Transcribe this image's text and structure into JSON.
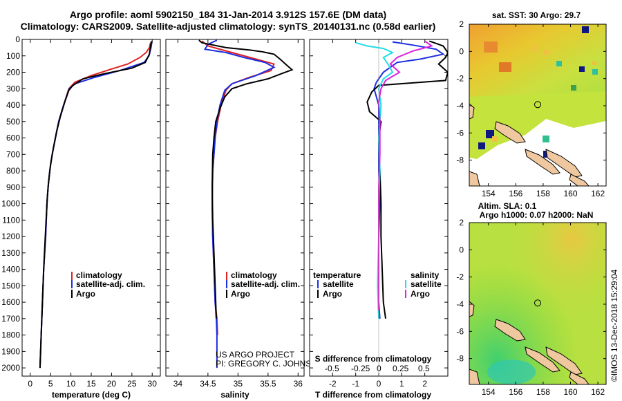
{
  "header": {
    "title_line1": "Argo profile: aoml 5902150_184 31-Jan-2014 3.912S 157.6E (DM data)",
    "title_line2": "Climatology: CARS2009. Satellite-adjusted climatology: synTS_20140131.nc (0.58d earlier)"
  },
  "colors": {
    "climatology": "#e02020",
    "satellite": "#1c2ee0",
    "argo": "#000000",
    "salinity_satellite": "#22dde8",
    "salinity_argo": "#dd22dd"
  },
  "depth_axis": {
    "ylim": [
      0,
      2050
    ],
    "ticks": [
      0,
      100,
      200,
      300,
      400,
      500,
      600,
      700,
      800,
      900,
      1000,
      1100,
      1200,
      1300,
      1400,
      1500,
      1600,
      1700,
      1800,
      1900,
      2000
    ]
  },
  "chart_data": [
    {
      "type": "line",
      "panel": "temperature",
      "xlabel": "temperature (deg C)",
      "xlim": [
        -2,
        32
      ],
      "xticks": [
        0,
        5,
        10,
        15,
        20,
        25,
        30
      ],
      "legend": [
        "climatology",
        "satellite-adj. clim.",
        "Argo"
      ],
      "series": [
        {
          "name": "climatology",
          "color_key": "climatology",
          "points": [
            [
              29.6,
              20
            ],
            [
              29.3,
              50
            ],
            [
              28.5,
              80
            ],
            [
              27,
              110
            ],
            [
              24,
              150
            ],
            [
              20,
              180
            ],
            [
              15,
              220
            ],
            [
              11,
              260
            ],
            [
              9.5,
              300
            ],
            [
              8.2,
              400
            ],
            [
              7,
              500
            ],
            [
              6.2,
              600
            ],
            [
              5.4,
              700
            ],
            [
              4.8,
              800
            ],
            [
              4.4,
              900
            ],
            [
              4.1,
              1000
            ],
            [
              3.8,
              1200
            ],
            [
              3.3,
              1400
            ],
            [
              3,
              1600
            ],
            [
              2.7,
              1800
            ],
            [
              2.4,
              2000
            ]
          ]
        },
        {
          "name": "satellite-adj. clim.",
          "color_key": "satellite",
          "points": [
            [
              29.9,
              20
            ],
            [
              29.7,
              50
            ],
            [
              29.2,
              100
            ],
            [
              28,
              140
            ],
            [
              22,
              190
            ],
            [
              16,
              230
            ],
            [
              11,
              270
            ],
            [
              9.6,
              300
            ],
            [
              8.2,
              400
            ],
            [
              7,
              500
            ],
            [
              6.2,
              600
            ],
            [
              5.4,
              700
            ],
            [
              4.8,
              800
            ],
            [
              4.4,
              900
            ],
            [
              4.1,
              1000
            ],
            [
              3.8,
              1200
            ],
            [
              3.3,
              1400
            ],
            [
              3,
              1600
            ],
            [
              2.7,
              1800
            ],
            [
              2.4,
              2000
            ]
          ]
        },
        {
          "name": "Argo",
          "color_key": "argo",
          "points": [
            [
              29.8,
              10
            ],
            [
              29.6,
              40
            ],
            [
              29.3,
              90
            ],
            [
              28.3,
              140
            ],
            [
              25,
              175
            ],
            [
              18,
              210
            ],
            [
              13,
              240
            ],
            [
              10.5,
              280
            ],
            [
              9.5,
              310
            ],
            [
              8.5,
              380
            ],
            [
              7.4,
              470
            ],
            [
              6.5,
              560
            ],
            [
              5.7,
              660
            ],
            [
              5,
              760
            ],
            [
              4.5,
              870
            ],
            [
              4.2,
              960
            ],
            [
              3.8,
              1150
            ],
            [
              3.3,
              1400
            ],
            [
              3,
              1600
            ],
            [
              2.7,
              1800
            ],
            [
              2.4,
              2000
            ]
          ]
        }
      ]
    },
    {
      "type": "line",
      "panel": "salinity",
      "xlabel": "salinity",
      "xlim": [
        33.8,
        36.1
      ],
      "xticks": [
        34,
        34.5,
        35,
        35.5,
        36
      ],
      "legend": [
        "climatology",
        "satellite-adj. clim.",
        "Argo"
      ],
      "footer": [
        "US ARGO PROJECT",
        "PI: GREGORY C. JOHNSON"
      ],
      "series": [
        {
          "name": "climatology",
          "color_key": "climatology",
          "points": [
            [
              34.4,
              10
            ],
            [
              34.5,
              40
            ],
            [
              34.8,
              70
            ],
            [
              35.2,
              110
            ],
            [
              35.6,
              150
            ],
            [
              35.55,
              190
            ],
            [
              35.2,
              230
            ],
            [
              34.9,
              270
            ],
            [
              34.8,
              310
            ],
            [
              34.72,
              400
            ],
            [
              34.66,
              500
            ],
            [
              34.62,
              600
            ],
            [
              34.6,
              700
            ],
            [
              34.58,
              800
            ],
            [
              34.57,
              1000
            ],
            [
              34.58,
              1200
            ],
            [
              34.6,
              1400
            ],
            [
              34.62,
              1600
            ],
            [
              34.65,
              1700
            ],
            [
              34.66,
              1800
            ]
          ]
        },
        {
          "name": "satellite-adj. clim.",
          "color_key": "satellite",
          "points": [
            [
              34.65,
              5
            ],
            [
              34.5,
              30
            ],
            [
              34.45,
              60
            ],
            [
              34.8,
              80
            ],
            [
              35.1,
              110
            ],
            [
              35.45,
              140
            ],
            [
              35.6,
              170
            ],
            [
              35.3,
              220
            ],
            [
              34.9,
              270
            ],
            [
              34.78,
              310
            ],
            [
              34.7,
              400
            ],
            [
              34.65,
              500
            ],
            [
              34.62,
              600
            ],
            [
              34.6,
              700
            ],
            [
              34.58,
              800
            ],
            [
              34.57,
              1000
            ],
            [
              34.58,
              1200
            ],
            [
              34.6,
              1400
            ],
            [
              34.62,
              1600
            ],
            [
              34.64,
              1700
            ],
            [
              34.65,
              1800
            ],
            [
              34.65,
              2000
            ]
          ]
        },
        {
          "name": "Argo",
          "color_key": "argo",
          "points": [
            [
              34.35,
              5
            ],
            [
              34.4,
              20
            ],
            [
              34.8,
              50
            ],
            [
              35.2,
              65
            ],
            [
              35.4,
              75
            ],
            [
              35.6,
              90
            ],
            [
              35.7,
              120
            ],
            [
              35.82,
              160
            ],
            [
              35.9,
              185
            ],
            [
              35.75,
              205
            ],
            [
              35.5,
              240
            ],
            [
              35.15,
              270
            ],
            [
              34.9,
              300
            ],
            [
              34.78,
              350
            ],
            [
              34.7,
              420
            ],
            [
              34.63,
              500
            ],
            [
              34.6,
              600
            ],
            [
              34.58,
              700
            ],
            [
              34.57,
              900
            ],
            [
              34.58,
              1100
            ],
            [
              34.6,
              1300
            ],
            [
              34.62,
              1500
            ],
            [
              34.64,
              1700
            ]
          ]
        }
      ]
    },
    {
      "type": "line",
      "panel": "difference",
      "xlabel": "T difference from climatology",
      "xlabel_top": "S difference from climatology",
      "xlim": [
        -3,
        3
      ],
      "xticks": [
        -2,
        -1,
        0,
        1,
        2
      ],
      "xticks_top": [
        "-0.5",
        "-0.25",
        "0",
        "0.25",
        "0.5"
      ],
      "legend_temperature_title": "temperature",
      "legend_salinity_title": "salinity",
      "legend_temperature": [
        "satellite",
        "Argo"
      ],
      "legend_salinity": [
        "satellite",
        "Argo"
      ],
      "series": [
        {
          "name": "T satellite",
          "color_key": "satellite",
          "points": [
            [
              0.6,
              15
            ],
            [
              1.5,
              35
            ],
            [
              2.5,
              60
            ],
            [
              2.8,
              90
            ],
            [
              1.8,
              120
            ],
            [
              0.8,
              140
            ],
            [
              0.2,
              200
            ],
            [
              -0.1,
              260
            ],
            [
              -0.2,
              300
            ],
            [
              0,
              400
            ],
            [
              0,
              600
            ],
            [
              0,
              800
            ],
            [
              0.05,
              1000
            ],
            [
              0,
              1200
            ],
            [
              0,
              1500
            ],
            [
              0,
              1600
            ],
            [
              0.05,
              1700
            ]
          ]
        },
        {
          "name": "T Argo",
          "color_key": "argo",
          "points": [
            [
              2.2,
              10
            ],
            [
              2.8,
              40
            ],
            [
              3,
              80
            ],
            [
              2.9,
              110
            ],
            [
              2.6,
              150
            ],
            [
              3,
              200
            ],
            [
              2.9,
              250
            ],
            [
              0,
              280
            ],
            [
              -0.3,
              320
            ],
            [
              -0.5,
              380
            ],
            [
              -0.4,
              440
            ],
            [
              0.1,
              500
            ],
            [
              0,
              600
            ],
            [
              0.05,
              800
            ],
            [
              0.1,
              1000
            ],
            [
              0.1,
              1200
            ],
            [
              0.15,
              1400
            ],
            [
              0.2,
              1600
            ],
            [
              0.3,
              1700
            ]
          ]
        },
        {
          "name": "S satellite",
          "color_key": "salinity_satellite",
          "points": [
            [
              -1,
              20
            ],
            [
              -0.5,
              40
            ],
            [
              0.2,
              55
            ],
            [
              0.6,
              80
            ],
            [
              0.2,
              110
            ],
            [
              0.4,
              150
            ],
            [
              0.6,
              200
            ],
            [
              0.2,
              240
            ],
            [
              0,
              300
            ],
            [
              0.1,
              400
            ],
            [
              0,
              600
            ],
            [
              0.05,
              800
            ],
            [
              0,
              1000
            ],
            [
              0,
              1200
            ],
            [
              -0.05,
              1500
            ],
            [
              0,
              1700
            ]
          ]
        },
        {
          "name": "S Argo",
          "color_key": "salinity_argo",
          "points": [
            [
              2,
              10
            ],
            [
              2.3,
              40
            ],
            [
              1.5,
              70
            ],
            [
              0.8,
              110
            ],
            [
              0.5,
              150
            ],
            [
              0.9,
              200
            ],
            [
              0.3,
              250
            ],
            [
              0.1,
              300
            ],
            [
              0,
              380
            ],
            [
              0.05,
              500
            ],
            [
              0.05,
              700
            ],
            [
              0,
              900
            ],
            [
              0,
              1200
            ],
            [
              0,
              1500
            ],
            [
              0,
              1650
            ]
          ]
        }
      ]
    },
    {
      "type": "heatmap",
      "panel": "sst-map",
      "title": "sat. SST: 30 Argo: 29.7",
      "xlim": [
        152.6,
        162.6
      ],
      "ylim": [
        -9.9,
        2
      ],
      "xticks": [
        154,
        156,
        158,
        160,
        162
      ],
      "yticks": [
        2,
        0,
        -2,
        -4,
        -6,
        -8
      ],
      "argo_location": [
        157.6,
        -3.912
      ]
    },
    {
      "type": "heatmap",
      "panel": "sla-map",
      "title_line1": "Altim. SLA: 0.1",
      "title_line2": "Argo h1000: 0.07 h2000: NaN",
      "xlim": [
        152.6,
        162.6
      ],
      "ylim": [
        -9.9,
        2
      ],
      "xticks": [
        154,
        156,
        158,
        160,
        162
      ],
      "yticks": [
        2,
        0,
        -2,
        -4,
        -6,
        -8
      ],
      "argo_location": [
        157.6,
        -3.912
      ]
    }
  ],
  "credit": "©IMOS 13-Dec-2018 15:29:04"
}
